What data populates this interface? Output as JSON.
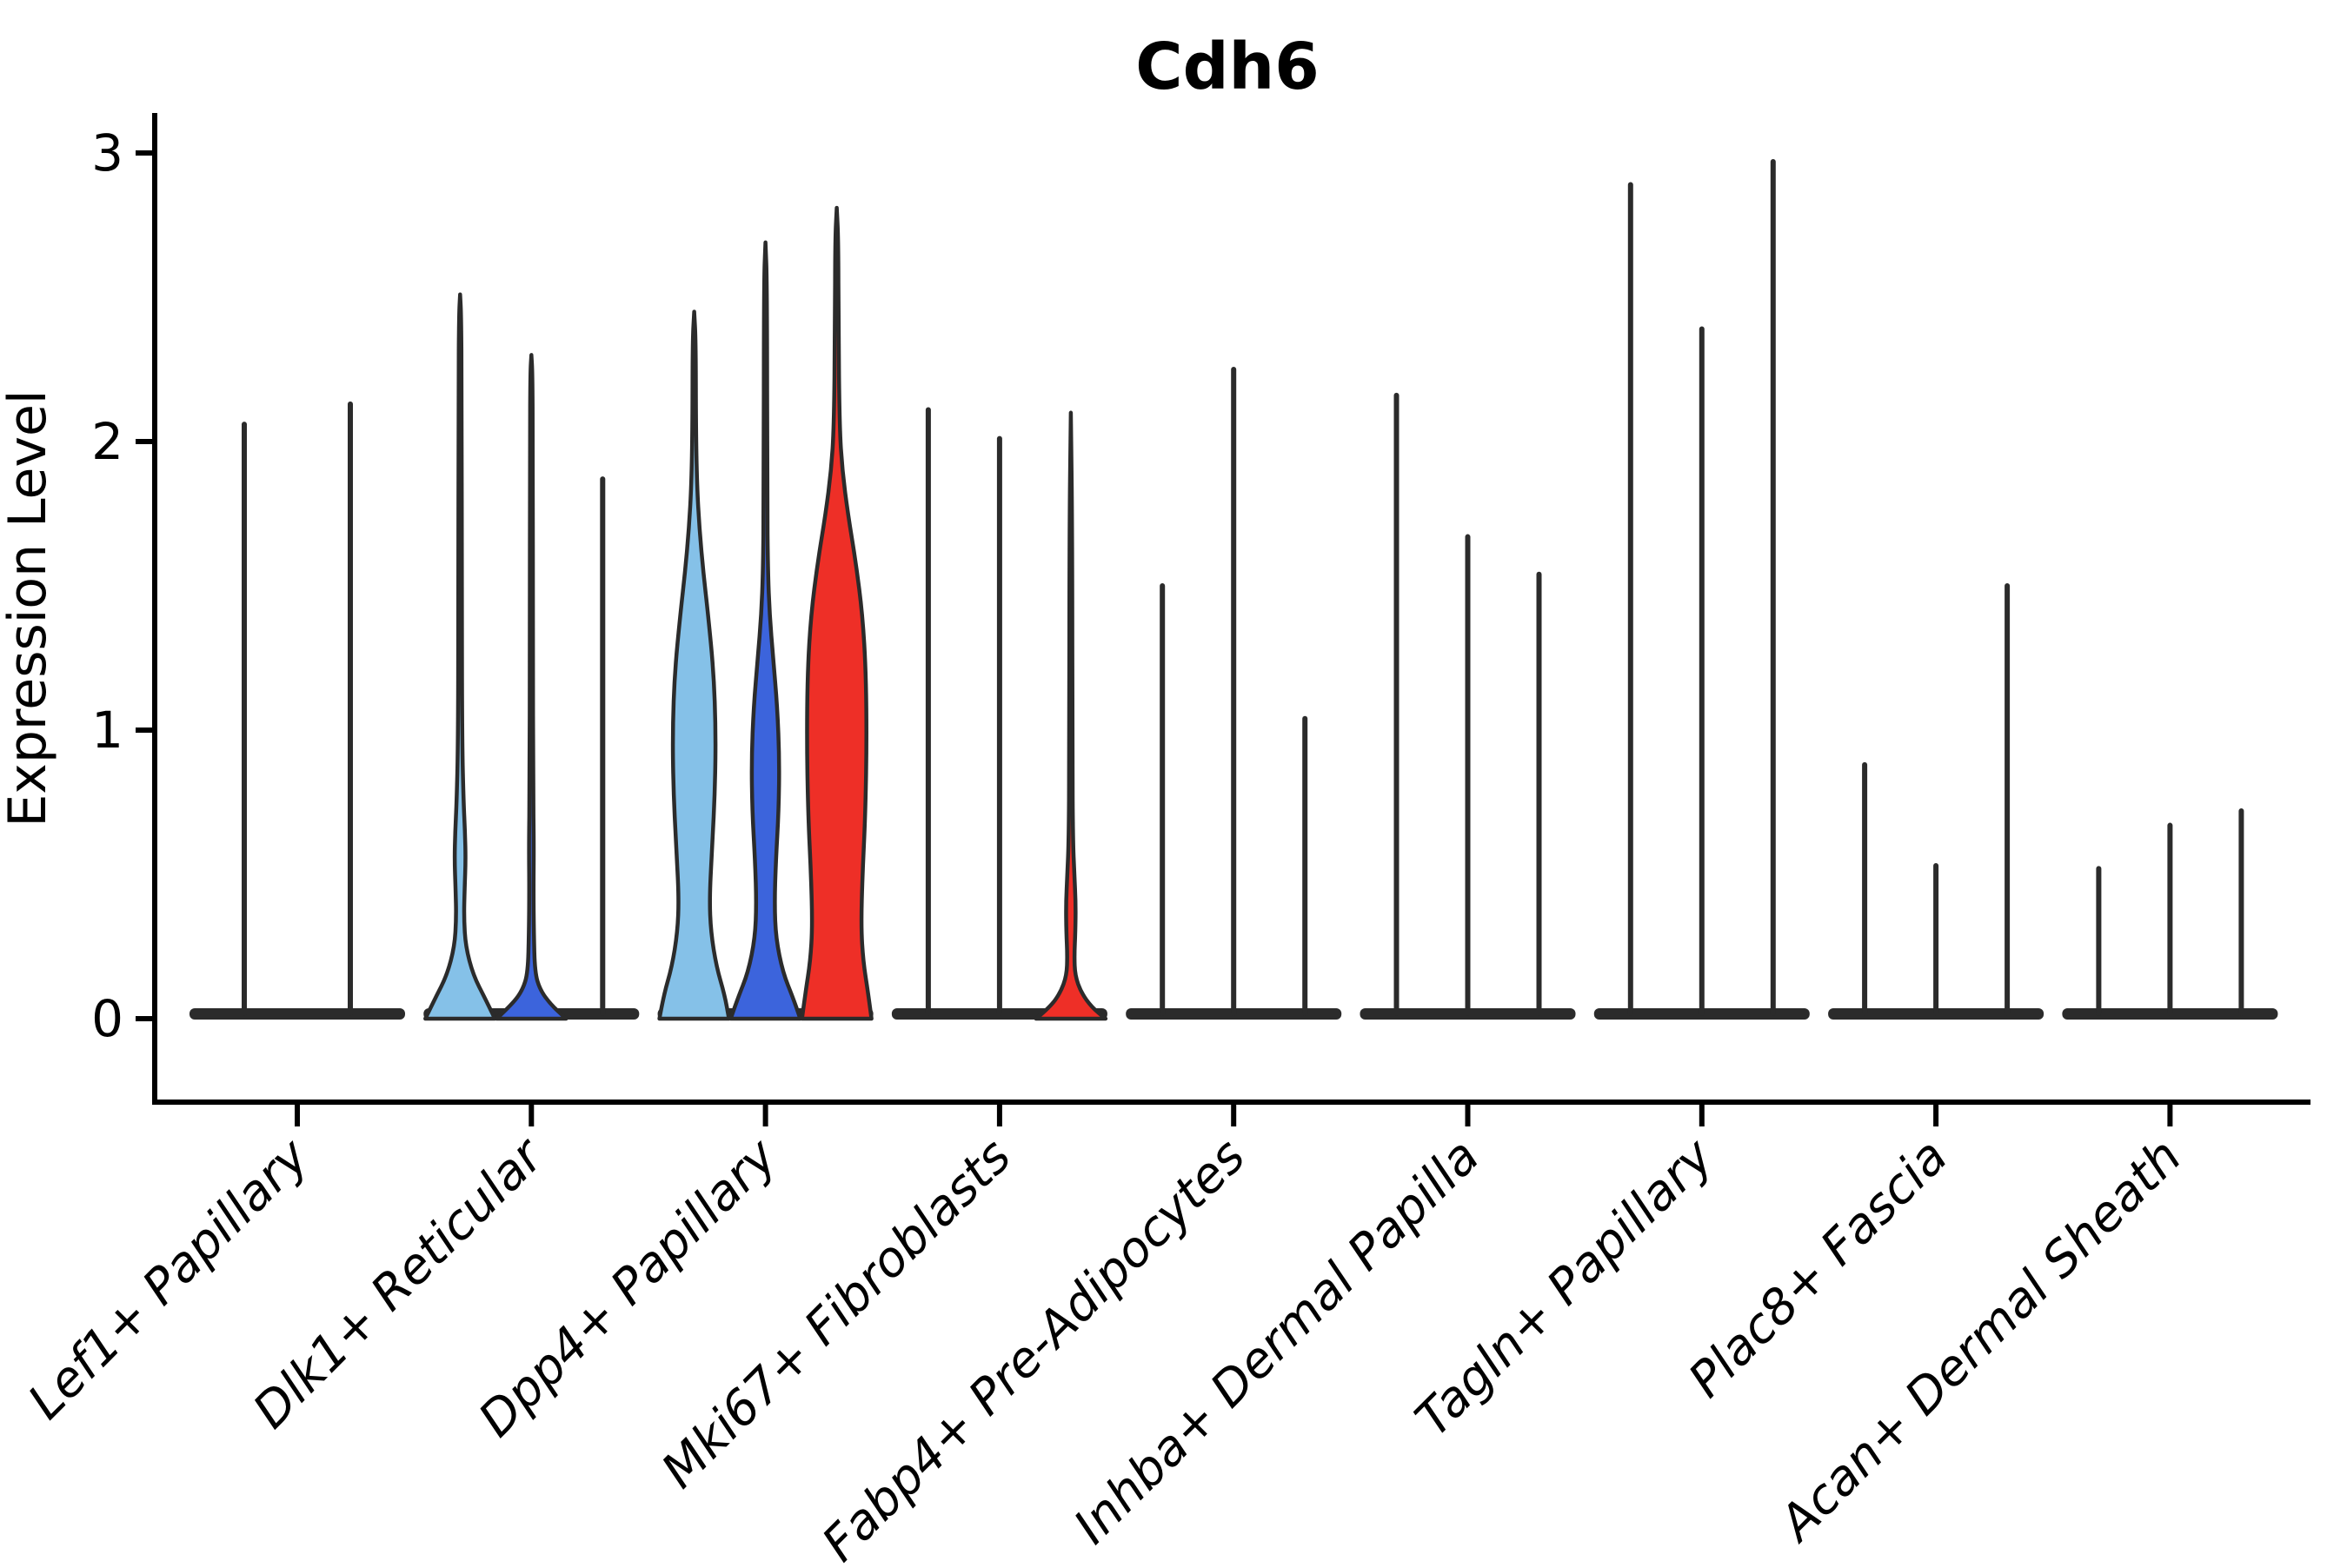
{
  "title": "Cdh6",
  "y_axis": {
    "label": "Expression Level",
    "tick_labels": [
      "0",
      "1",
      "2",
      "3"
    ]
  },
  "colors": {
    "series": [
      "#85C1E8",
      "#3C64DC",
      "#EE2F27"
    ],
    "outline": "#2b2b2b",
    "axis": "#000000",
    "background": "#ffffff"
  },
  "chart_data": {
    "type": "violin",
    "title": "Cdh6",
    "xlabel": "",
    "ylabel": "Expression Level",
    "ylim": [
      0,
      3.1
    ],
    "yticks": [
      0,
      1,
      2,
      3
    ],
    "grid": false,
    "legend_position": "none",
    "series_colors": [
      "#85C1E8",
      "#3C64DC",
      "#EE2F27"
    ],
    "categories": [
      "Lef1+ Papillary",
      "Dlk1+ Reticular",
      "Dpp4+ Papillary",
      "Mki67+ Fibroblasts",
      "Fabp4+ Pre-Adipocytes",
      "Inhba+ Dermal Papilla",
      "Tagln+ Papillary",
      "Plac8+ Fascia",
      "Acan+ Dermal Sheath"
    ],
    "groups": [
      {
        "label": "Lef1+ Papillary",
        "violins": [
          {
            "series": 0,
            "max": 2.06,
            "body": null
          },
          {
            "series": 1,
            "max": 2.13,
            "body": null
          }
        ]
      },
      {
        "label": "Dlk1+ Reticular",
        "violins": [
          {
            "series": 0,
            "max": 2.51,
            "body": [
              [
                0,
                1.0
              ],
              [
                0.07,
                0.72
              ],
              [
                0.15,
                0.38
              ],
              [
                0.25,
                0.16
              ],
              [
                0.35,
                0.11
              ],
              [
                0.45,
                0.13
              ],
              [
                0.55,
                0.16
              ],
              [
                0.65,
                0.14
              ],
              [
                0.75,
                0.1
              ],
              [
                0.95,
                0.06
              ],
              [
                1.4,
                0.05
              ],
              [
                2.2,
                0.045
              ],
              [
                2.44,
                0.03
              ],
              [
                2.51,
                0.0
              ]
            ]
          },
          {
            "series": 1,
            "max": 2.3,
            "body": [
              [
                0,
                1.0
              ],
              [
                0.05,
                0.55
              ],
              [
                0.1,
                0.25
              ],
              [
                0.16,
                0.1
              ],
              [
                0.3,
                0.07
              ],
              [
                0.45,
                0.06
              ],
              [
                0.6,
                0.07
              ],
              [
                0.8,
                0.05
              ],
              [
                1.3,
                0.045
              ],
              [
                2.0,
                0.04
              ],
              [
                2.24,
                0.03
              ],
              [
                2.3,
                0.0
              ]
            ]
          },
          {
            "series": 2,
            "max": 1.87,
            "body": null
          }
        ]
      },
      {
        "label": "Dpp4+ Papillary",
        "violins": [
          {
            "series": 0,
            "max": 2.45,
            "body": [
              [
                0,
                1.0
              ],
              [
                0.08,
                0.88
              ],
              [
                0.18,
                0.64
              ],
              [
                0.3,
                0.48
              ],
              [
                0.42,
                0.44
              ],
              [
                0.6,
                0.52
              ],
              [
                0.8,
                0.6
              ],
              [
                1.0,
                0.62
              ],
              [
                1.2,
                0.56
              ],
              [
                1.4,
                0.4
              ],
              [
                1.55,
                0.26
              ],
              [
                1.7,
                0.15
              ],
              [
                1.85,
                0.08
              ],
              [
                2.05,
                0.05
              ],
              [
                2.35,
                0.045
              ],
              [
                2.45,
                0.0
              ]
            ]
          },
          {
            "series": 1,
            "max": 2.69,
            "body": [
              [
                0,
                1.0
              ],
              [
                0.07,
                0.8
              ],
              [
                0.16,
                0.5
              ],
              [
                0.28,
                0.3
              ],
              [
                0.4,
                0.26
              ],
              [
                0.55,
                0.3
              ],
              [
                0.72,
                0.38
              ],
              [
                0.9,
                0.4
              ],
              [
                1.08,
                0.34
              ],
              [
                1.25,
                0.22
              ],
              [
                1.4,
                0.12
              ],
              [
                1.55,
                0.07
              ],
              [
                1.8,
                0.05
              ],
              [
                2.55,
                0.045
              ],
              [
                2.69,
                0.0
              ]
            ]
          },
          {
            "series": 2,
            "max": 2.81,
            "body": [
              [
                0,
                1.0
              ],
              [
                0.09,
                0.9
              ],
              [
                0.2,
                0.76
              ],
              [
                0.32,
                0.7
              ],
              [
                0.5,
                0.74
              ],
              [
                0.7,
                0.82
              ],
              [
                0.95,
                0.86
              ],
              [
                1.2,
                0.84
              ],
              [
                1.4,
                0.74
              ],
              [
                1.58,
                0.55
              ],
              [
                1.75,
                0.32
              ],
              [
                1.9,
                0.16
              ],
              [
                2.05,
                0.08
              ],
              [
                2.4,
                0.05
              ],
              [
                2.7,
                0.045
              ],
              [
                2.81,
                0.0
              ]
            ]
          }
        ]
      },
      {
        "label": "Mki67+ Fibroblasts",
        "violins": [
          {
            "series": 0,
            "max": 2.11,
            "body": null
          },
          {
            "series": 1,
            "max": 2.01,
            "body": null
          },
          {
            "series": 2,
            "max": 2.1,
            "body": [
              [
                0,
                1.0
              ],
              [
                0.04,
                0.6
              ],
              [
                0.09,
                0.3
              ],
              [
                0.15,
                0.12
              ],
              [
                0.22,
                0.1
              ],
              [
                0.3,
                0.13
              ],
              [
                0.4,
                0.14
              ],
              [
                0.5,
                0.1
              ],
              [
                0.62,
                0.06
              ],
              [
                0.9,
                0.045
              ],
              [
                1.7,
                0.04
              ],
              [
                2.1,
                0.0
              ]
            ]
          }
        ]
      },
      {
        "label": "Fabp4+ Pre-Adipocytes",
        "violins": [
          {
            "series": 0,
            "max": 1.5,
            "body": null
          },
          {
            "series": 1,
            "max": 2.25,
            "body": null
          },
          {
            "series": 2,
            "max": 1.04,
            "body": null
          }
        ]
      },
      {
        "label": "Inhba+ Dermal Papilla",
        "violins": [
          {
            "series": 0,
            "max": 2.16,
            "body": null
          },
          {
            "series": 1,
            "max": 1.67,
            "body": null
          },
          {
            "series": 2,
            "max": 1.54,
            "body": null
          }
        ]
      },
      {
        "label": "Tagln+ Papillary",
        "violins": [
          {
            "series": 0,
            "max": 2.89,
            "body": null
          },
          {
            "series": 1,
            "max": 2.39,
            "body": null
          },
          {
            "series": 2,
            "max": 2.97,
            "body": null
          }
        ]
      },
      {
        "label": "Plac8+ Fascia",
        "violins": [
          {
            "series": 0,
            "max": 0.88,
            "body": null
          },
          {
            "series": 1,
            "max": 0.53,
            "body": null
          },
          {
            "series": 2,
            "max": 1.5,
            "body": null
          }
        ]
      },
      {
        "label": "Acan+ Dermal Sheath",
        "violins": [
          {
            "series": 0,
            "max": 0.52,
            "body": null
          },
          {
            "series": 1,
            "max": 0.67,
            "body": null
          },
          {
            "series": 2,
            "max": 0.72,
            "body": null
          }
        ]
      }
    ]
  }
}
